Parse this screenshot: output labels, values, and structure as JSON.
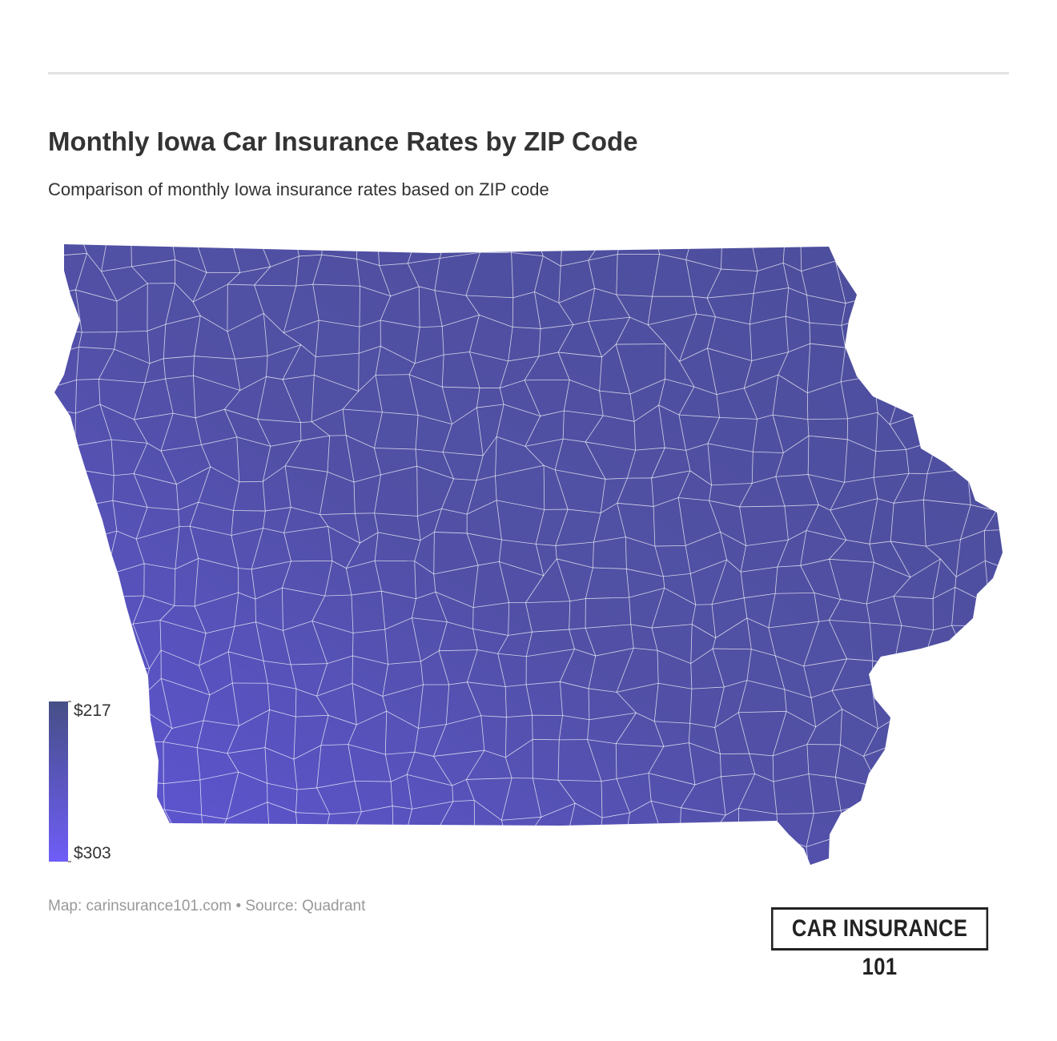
{
  "header": {
    "title": "Monthly Iowa Car Insurance Rates by ZIP Code",
    "subtitle": "Comparison of monthly Iowa insurance rates based on ZIP code"
  },
  "legend": {
    "colors": [
      "#464f86",
      "#6f5df7"
    ],
    "ticks": [
      {
        "value": 217,
        "label": "$217"
      },
      {
        "value": 303,
        "label": "$303"
      }
    ]
  },
  "footer": {
    "source": "Map: carinsurance101.com • Source: Quadrant",
    "logo": "CAR INSURANCE 101"
  }
}
